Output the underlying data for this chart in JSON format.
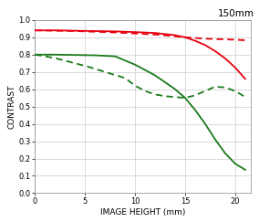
{
  "title": "150mm",
  "xlabel": "IMAGE HEIGHT (mm)",
  "ylabel": "CONTRAST",
  "xlim": [
    0,
    21.6
  ],
  "ylim": [
    0,
    1.0
  ],
  "xticks": [
    0,
    5,
    10,
    15,
    20
  ],
  "yticks": [
    0,
    0.1,
    0.2,
    0.3,
    0.4,
    0.5,
    0.6,
    0.7,
    0.8,
    0.9,
    1
  ],
  "red_solid_x": [
    0,
    2,
    4,
    6,
    8,
    10,
    12,
    14,
    15,
    16,
    17,
    18,
    19,
    20,
    21
  ],
  "red_solid_y": [
    0.94,
    0.94,
    0.938,
    0.936,
    0.934,
    0.93,
    0.925,
    0.912,
    0.9,
    0.88,
    0.855,
    0.82,
    0.778,
    0.725,
    0.66
  ],
  "red_dashed_x": [
    0,
    2,
    4,
    6,
    8,
    10,
    12,
    14,
    15,
    16,
    17,
    18,
    19,
    20,
    21
  ],
  "red_dashed_y": [
    0.94,
    0.938,
    0.936,
    0.932,
    0.928,
    0.922,
    0.916,
    0.906,
    0.9,
    0.896,
    0.892,
    0.89,
    0.888,
    0.886,
    0.883
  ],
  "green_solid_x": [
    0,
    2,
    4,
    6,
    8,
    10,
    12,
    13,
    14,
    15,
    16,
    17,
    18,
    19,
    20,
    21
  ],
  "green_solid_y": [
    0.8,
    0.8,
    0.798,
    0.796,
    0.79,
    0.742,
    0.68,
    0.64,
    0.6,
    0.55,
    0.48,
    0.4,
    0.31,
    0.23,
    0.17,
    0.135
  ],
  "green_dashed_x": [
    0,
    2,
    4,
    5,
    6,
    7,
    8,
    9,
    10,
    11,
    12,
    13,
    14,
    15,
    16,
    17,
    18,
    19,
    20,
    21
  ],
  "green_dashed_y": [
    0.8,
    0.78,
    0.75,
    0.735,
    0.718,
    0.7,
    0.682,
    0.665,
    0.62,
    0.59,
    0.57,
    0.56,
    0.555,
    0.55,
    0.565,
    0.59,
    0.615,
    0.61,
    0.59,
    0.555
  ],
  "red_color": "#e8000e",
  "green_color": "#1a7a1a",
  "linewidth": 1.3,
  "bg_color": "#ffffff",
  "grid_color": "#cccccc",
  "title_fontsize": 7.5,
  "label_fontsize": 6.5,
  "tick_fontsize": 6
}
